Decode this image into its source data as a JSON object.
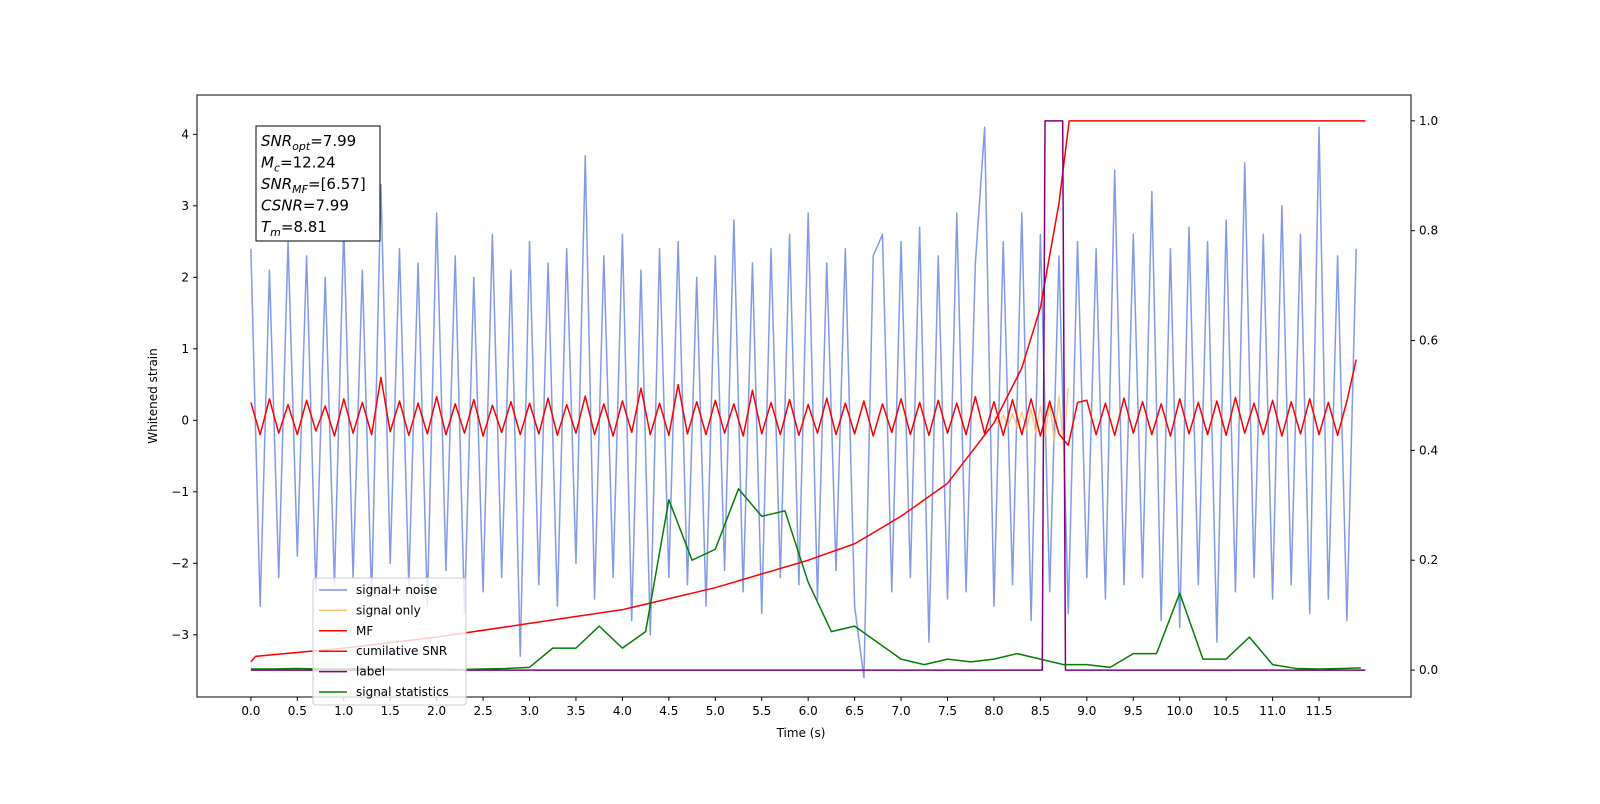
{
  "chart_data": {
    "type": "line",
    "xlabel": "Time (s)",
    "ylabel": "Whitened strain",
    "xlim": [
      -0.58,
      12.49
    ],
    "ylim": [
      -3.87,
      4.55
    ],
    "y2lim": [
      -0.049,
      1.047
    ],
    "xticks": [
      {
        "value": 0,
        "label": "0.0"
      },
      0.5,
      {
        "value": 1,
        "label": "1.0"
      },
      1.5,
      {
        "value": 2,
        "label": "2.0"
      },
      2.5,
      {
        "value": 3,
        "label": "3.0"
      },
      3.5,
      {
        "value": 4,
        "label": "4.0"
      },
      4.5,
      {
        "value": 5,
        "label": "5.0"
      },
      5.5,
      {
        "value": 6,
        "label": "6.0"
      },
      6.5,
      {
        "value": 7,
        "label": "7.0"
      },
      7.5,
      {
        "value": 8,
        "label": "8.0"
      },
      8.5,
      {
        "value": 9,
        "label": "9.0"
      },
      9.5,
      {
        "value": 10,
        "label": "10.0"
      },
      10.5,
      {
        "value": 11,
        "label": "11.0"
      },
      11.5
    ],
    "yticks": [
      {
        "value": -3,
        "label": "−3"
      },
      {
        "value": -2,
        "label": "−2"
      },
      {
        "value": -1,
        "label": "−1"
      },
      0,
      1,
      2,
      3,
      4
    ],
    "y2ticks": [
      {
        "value": 0,
        "label": "0.0"
      },
      0.2,
      0.4,
      0.6,
      0.8,
      {
        "value": 1,
        "label": "1.0"
      }
    ],
    "legend": "lower left",
    "annotations": [
      {
        "main": "SNR",
        "sub": "opt",
        "rest": "=7.99"
      },
      {
        "main": "M",
        "sub": "c",
        "rest": "=12.24"
      },
      {
        "main": "SNR",
        "sub": "MF",
        "rest": "=[6.57]"
      },
      {
        "main": "CSNR",
        "sub": null,
        "rest": "=7.99"
      },
      {
        "main": "T",
        "sub": "m",
        "rest": "=8.81"
      }
    ],
    "series": [
      {
        "name": "signal+ noise",
        "color": "#7a96e8",
        "x": [
          0,
          0.1,
          0.2,
          0.3,
          0.4,
          0.5,
          0.6,
          0.7,
          0.8,
          0.9,
          1,
          1.1,
          1.2,
          1.3,
          1.4,
          1.5,
          1.6,
          1.7,
          1.8,
          1.9,
          2,
          2.1,
          2.2,
          2.3,
          2.4,
          2.5,
          2.6,
          2.7,
          2.8,
          2.9,
          3,
          3.1,
          3.2,
          3.3,
          3.4,
          3.5,
          3.6,
          3.7,
          3.8,
          3.9,
          4,
          4.1,
          4.2,
          4.3,
          4.4,
          4.5,
          4.6,
          4.7,
          4.8,
          4.9,
          5,
          5.1,
          5.2,
          5.3,
          5.4,
          5.5,
          5.6,
          5.7,
          5.8,
          5.9,
          6,
          6.1,
          6.2,
          6.3,
          6.4,
          6.5,
          6.6,
          6.7,
          6.8,
          6.9,
          7,
          7.1,
          7.2,
          7.3,
          7.4,
          7.5,
          7.6,
          7.7,
          7.8,
          7.9,
          8,
          8.1,
          8.2,
          8.3,
          8.4,
          8.5,
          8.6,
          8.7,
          8.8,
          8.9,
          9,
          9.1,
          9.2,
          9.3,
          9.4,
          9.5,
          9.6,
          9.7,
          9.8,
          9.9,
          10,
          10.1,
          10.2,
          10.3,
          10.4,
          10.5,
          10.6,
          10.7,
          10.8,
          10.9,
          11,
          11.1,
          11.2,
          11.3,
          11.4,
          11.5,
          11.6,
          11.7,
          11.8,
          11.9
        ],
        "values": [
          2.4,
          -2.6,
          2.1,
          -2.2,
          2.5,
          -1.9,
          2.3,
          -2.4,
          2.0,
          -2.3,
          2.7,
          -2.2,
          2.1,
          -2.5,
          3.3,
          -2.0,
          2.4,
          -2.3,
          2.2,
          -2.6,
          2.9,
          -2.1,
          2.3,
          -2.7,
          2.0,
          -2.4,
          2.6,
          -2.2,
          2.1,
          -3.3,
          2.5,
          -2.3,
          2.2,
          -2.6,
          2.4,
          -2.0,
          3.7,
          -2.5,
          2.3,
          -2.2,
          2.6,
          -2.8,
          2.1,
          -3.0,
          2.4,
          -2.2,
          2.5,
          -2.3,
          2.0,
          -2.6,
          2.3,
          -2.1,
          2.8,
          -2.4,
          2.2,
          -2.7,
          2.4,
          -2.2,
          2.6,
          -2.3,
          2.9,
          -2.5,
          2.2,
          -2.1,
          2.4,
          -2.6,
          -3.6,
          2.3,
          2.6,
          -2.4,
          2.5,
          -2.2,
          2.7,
          -3.1,
          2.3,
          -2.5,
          2.9,
          -2.4,
          2.2,
          4.1,
          -2.6,
          2.5,
          -2.3,
          2.9,
          -2.8,
          2.6,
          -2.4,
          2.3,
          -2.7,
          2.5,
          -2.2,
          2.4,
          -2.5,
          3.5,
          -2.3,
          2.6,
          -2.2,
          3.2,
          -2.8,
          2.4,
          -2.9,
          2.7,
          -2.3,
          2.5,
          -3.1,
          2.8,
          -2.4,
          3.6,
          -2.2,
          2.6,
          -2.5,
          3.0,
          -2.3,
          2.6,
          -2.7,
          4.1,
          -2.5,
          2.3,
          -2.8,
          2.4
        ]
      },
      {
        "name": "signal only",
        "color": "#f5c070",
        "x": [
          8,
          8.05,
          8.1,
          8.15,
          8.2,
          8.25,
          8.3,
          8.35,
          8.4,
          8.45,
          8.5,
          8.55,
          8.6,
          8.65,
          8.7,
          8.75,
          8.8
        ],
        "values": [
          0.05,
          -0.06,
          0.07,
          -0.08,
          0.09,
          -0.1,
          0.12,
          -0.14,
          0.16,
          -0.18,
          0.2,
          -0.23,
          0.26,
          -0.3,
          0.34,
          -0.38,
          0.45
        ]
      },
      {
        "name": "MF",
        "color": "#ff0000",
        "x": [
          0,
          0.1,
          0.2,
          0.3,
          0.4,
          0.5,
          0.6,
          0.7,
          0.8,
          0.9,
          1,
          1.1,
          1.2,
          1.3,
          1.4,
          1.5,
          1.6,
          1.7,
          1.8,
          1.9,
          2,
          2.1,
          2.2,
          2.3,
          2.4,
          2.5,
          2.6,
          2.7,
          2.8,
          2.9,
          3,
          3.1,
          3.2,
          3.3,
          3.4,
          3.5,
          3.6,
          3.7,
          3.8,
          3.9,
          4,
          4.1,
          4.2,
          4.3,
          4.4,
          4.5,
          4.6,
          4.7,
          4.8,
          4.9,
          5,
          5.1,
          5.2,
          5.3,
          5.4,
          5.5,
          5.6,
          5.7,
          5.8,
          5.9,
          6,
          6.1,
          6.2,
          6.3,
          6.4,
          6.5,
          6.6,
          6.7,
          6.8,
          6.9,
          7,
          7.1,
          7.2,
          7.3,
          7.4,
          7.5,
          7.6,
          7.7,
          7.8,
          7.9,
          8,
          8.1,
          8.2,
          8.3,
          8.4,
          8.5,
          8.6,
          8.7,
          8.8,
          8.9,
          9,
          9.1,
          9.2,
          9.3,
          9.4,
          9.5,
          9.6,
          9.7,
          9.8,
          9.9,
          10,
          10.1,
          10.2,
          10.3,
          10.4,
          10.5,
          10.6,
          10.7,
          10.8,
          10.9,
          11,
          11.1,
          11.2,
          11.3,
          11.4,
          11.5,
          11.6,
          11.7,
          11.8,
          11.9
        ],
        "values": [
          0.25,
          -0.2,
          0.3,
          -0.18,
          0.22,
          -0.2,
          0.28,
          -0.15,
          0.2,
          -0.22,
          0.3,
          -0.18,
          0.25,
          -0.2,
          0.6,
          -0.16,
          0.27,
          -0.21,
          0.24,
          -0.19,
          0.33,
          -0.2,
          0.23,
          -0.18,
          0.29,
          -0.22,
          0.21,
          -0.17,
          0.26,
          -0.2,
          0.24,
          -0.19,
          0.31,
          -0.21,
          0.22,
          -0.18,
          0.34,
          -0.2,
          0.23,
          -0.22,
          0.27,
          -0.17,
          0.45,
          -0.2,
          0.24,
          -0.21,
          0.5,
          -0.19,
          0.26,
          -0.2,
          0.28,
          -0.18,
          0.23,
          -0.22,
          0.42,
          -0.19,
          0.25,
          -0.2,
          0.29,
          -0.21,
          0.22,
          -0.18,
          0.31,
          -0.2,
          0.24,
          -0.19,
          0.27,
          -0.22,
          0.23,
          -0.17,
          0.3,
          -0.2,
          0.25,
          -0.21,
          0.28,
          -0.18,
          0.24,
          -0.2,
          0.33,
          -0.19,
          0.26,
          -0.21,
          0.29,
          -0.2,
          0.3,
          -0.22,
          0.27,
          -0.19,
          -0.35,
          0.25,
          0.28,
          -0.2,
          0.24,
          -0.21,
          0.31,
          -0.18,
          0.26,
          -0.2,
          0.23,
          -0.22,
          0.3,
          -0.19,
          0.25,
          -0.2,
          0.27,
          -0.21,
          0.32,
          -0.18,
          0.24,
          -0.2,
          0.28,
          -0.22,
          0.26,
          -0.19,
          0.3,
          -0.2,
          0.25,
          -0.21,
          0.27,
          0.85
        ]
      },
      {
        "name": "cumilative SNR",
        "color": "#ff0000",
        "axis": "y2",
        "x": [
          0,
          0.05,
          1,
          2,
          3,
          4,
          5,
          6,
          6.5,
          7,
          7.5,
          8,
          8.3,
          8.5,
          8.7,
          8.81,
          12
        ],
        "values": [
          0.015,
          0.025,
          0.04,
          0.06,
          0.085,
          0.11,
          0.15,
          0.2,
          0.23,
          0.28,
          0.34,
          0.45,
          0.55,
          0.66,
          0.85,
          1.0,
          1.0
        ]
      },
      {
        "name": "label",
        "color": "#800080",
        "axis": "y2",
        "x": [
          0,
          8.52,
          8.55,
          8.74,
          8.77,
          12
        ],
        "values": [
          0,
          0,
          1,
          1,
          0,
          0
        ]
      },
      {
        "name": "signal statistics",
        "color": "#008000",
        "axis": "y2",
        "x": [
          0,
          0.25,
          0.5,
          0.75,
          1,
          1.25,
          1.5,
          1.75,
          2,
          2.25,
          2.5,
          2.75,
          3,
          3.25,
          3.5,
          3.75,
          4,
          4.25,
          4.5,
          4.75,
          5,
          5.25,
          5.5,
          5.75,
          6,
          6.25,
          6.5,
          6.75,
          7,
          7.25,
          7.5,
          7.75,
          8,
          8.25,
          8.5,
          8.75,
          9,
          9.25,
          9.5,
          9.75,
          10,
          10.25,
          10.5,
          10.75,
          11,
          11.25,
          11.5,
          11.75,
          11.95
        ],
        "values": [
          0.002,
          0.002,
          0.003,
          0.002,
          0.002,
          0.003,
          0.002,
          0.002,
          0.002,
          0.001,
          0.002,
          0.003,
          0.005,
          0.04,
          0.04,
          0.08,
          0.04,
          0.07,
          0.31,
          0.2,
          0.22,
          0.33,
          0.28,
          0.29,
          0.16,
          0.07,
          0.08,
          0.05,
          0.02,
          0.01,
          0.02,
          0.015,
          0.02,
          0.03,
          0.02,
          0.01,
          0.01,
          0.005,
          0.03,
          0.03,
          0.14,
          0.02,
          0.02,
          0.06,
          0.01,
          0.003,
          0.002,
          0.003,
          0.004
        ]
      }
    ]
  }
}
